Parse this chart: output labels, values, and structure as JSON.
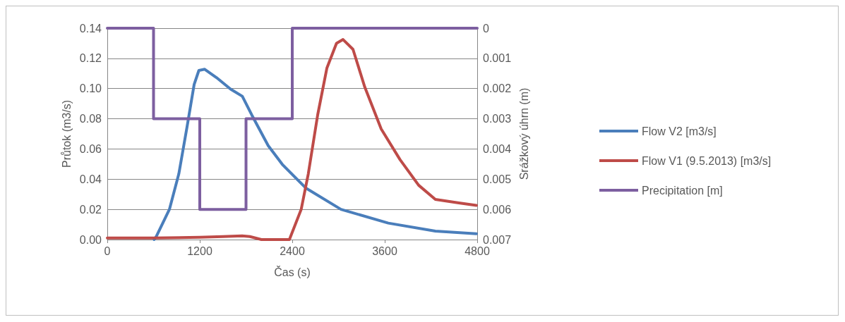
{
  "chart_data": {
    "type": "line",
    "xlabel": "Čas (s)",
    "ylabel": "Průtok (m3/s)",
    "y2label": "Srážkový úhrn (m)",
    "xlim": [
      0,
      4800
    ],
    "xticks": [
      0,
      1200,
      2400,
      3600,
      4800
    ],
    "ylim": [
      0,
      0.14
    ],
    "yticks": [
      {
        "value": 0,
        "label": "0.00"
      },
      0.02,
      0.04,
      0.06,
      0.08,
      {
        "value": 0.1,
        "label": "0.10"
      },
      0.12,
      0.14
    ],
    "y2lim": [
      0.007,
      0
    ],
    "y2ticks": [
      0,
      0.001,
      0.002,
      0.003,
      0.004,
      0.005,
      0.006,
      0.007
    ],
    "grid": "y",
    "legend": "right",
    "marker": "none",
    "line_style": "solid",
    "series": [
      {
        "name": "Flow V2 [m3/s]",
        "color": "#4a7ebb",
        "x": [
          608,
          638,
          806,
          928,
          1035,
          1127,
          1188,
          1264,
          1416,
          1600,
          1752,
          1875,
          2088,
          2271,
          2574,
          3032,
          3646,
          4257,
          4790
        ],
        "values": [
          0,
          0.0023,
          0.02,
          0.0435,
          0.0747,
          0.1027,
          0.112,
          0.1128,
          0.1073,
          0.0996,
          0.0949,
          0.0825,
          0.0622,
          0.0498,
          0.0342,
          0.02,
          0.0109,
          0.0056,
          0.0039
        ]
      },
      {
        "name": "Flow V1 (9.5.2013) [m3/s]",
        "color": "#be4b48",
        "x": [
          0,
          600,
          1200,
          1500,
          1750,
          1850,
          2000,
          2363,
          2516,
          2608,
          2730,
          2849,
          2974,
          3059,
          3188,
          3341,
          3554,
          3799,
          4040,
          4257,
          4562,
          4790
        ],
        "values": [
          0.001,
          0.001,
          0.0015,
          0.002,
          0.0025,
          0.002,
          0,
          0,
          0.02,
          0.0435,
          0.0826,
          0.1135,
          0.13,
          0.1325,
          0.126,
          0.101,
          0.0733,
          0.0529,
          0.036,
          0.0266,
          0.0243,
          0.0226
        ]
      },
      {
        "name": "Precipitation [m]",
        "color": "#7d5fa0",
        "type": "step",
        "axis": "y2",
        "x": [
          0,
          600,
          1200,
          1800,
          2400,
          4800
        ],
        "values": [
          0,
          0.003,
          0.006,
          0.003,
          0,
          0
        ]
      }
    ]
  }
}
